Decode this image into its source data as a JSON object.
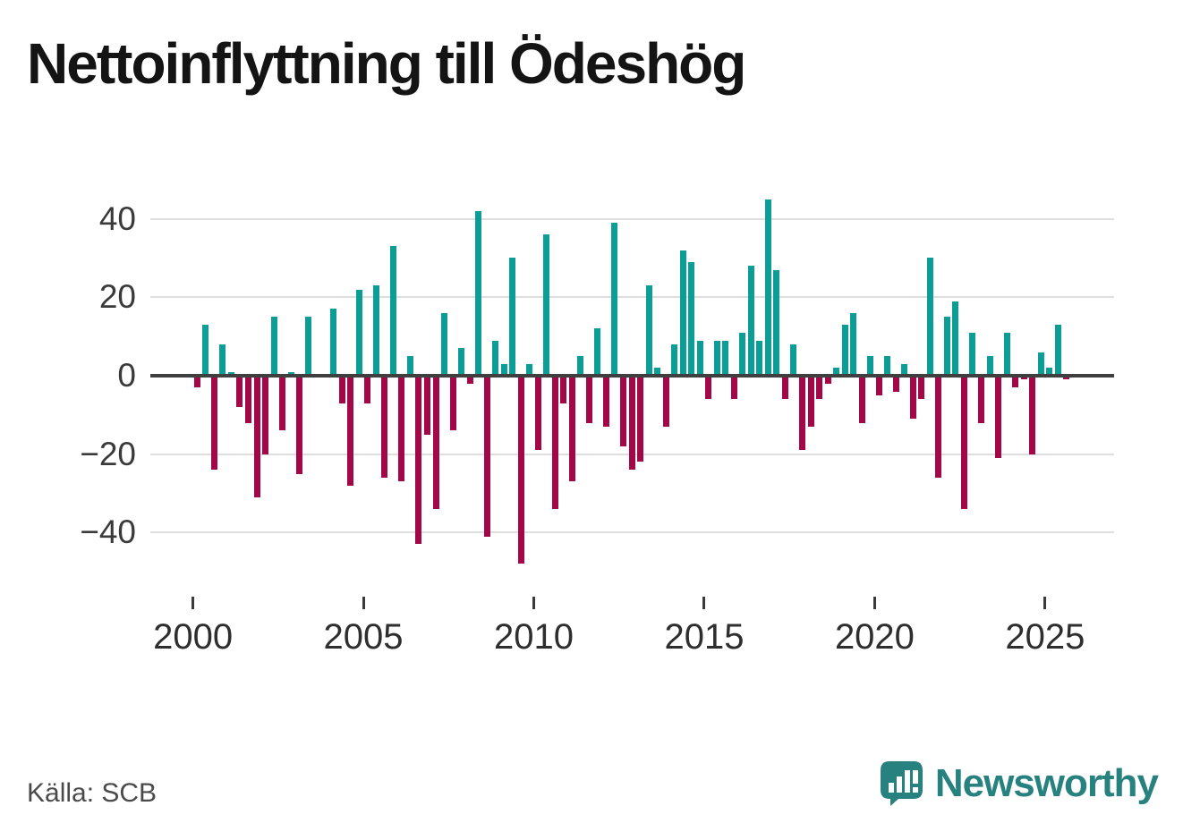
{
  "title": "Nettoinflyttning till Ödeshög",
  "source_note": "Källa: SCB",
  "brand": {
    "name": "Newsworthy",
    "icon": "newsworthy-speech-bubble-bar-chart-icon",
    "color": "#27817e"
  },
  "colors": {
    "positive_bar": "#0a9e96",
    "negative_bar": "#a30748",
    "zero_axis": "#3f3f3f",
    "gridline": "#dedede",
    "title_text": "#141414",
    "tick_text": "#2e2e2e",
    "source_text": "#4a4a4a"
  },
  "chart_data": {
    "type": "bar",
    "title": "Nettoinflyttning till Ödeshög",
    "frequency": "quarterly",
    "x_start": "2000Q1",
    "x_end": "2025Q3",
    "x_tick_years": [
      2000,
      2005,
      2010,
      2015,
      2020,
      2025
    ],
    "x_tick_labels": [
      "2000",
      "2005",
      "2010",
      "2015",
      "2020",
      "2025"
    ],
    "y_ticks": [
      40,
      20,
      0,
      -20,
      -40
    ],
    "y_tick_labels": [
      "40",
      "20",
      "0",
      "−20",
      "−40"
    ],
    "ylim": [
      -50,
      46
    ],
    "grid": true,
    "legend": false,
    "values": [
      -3,
      13,
      -24,
      8,
      1,
      -8,
      -12,
      -31,
      -20,
      15,
      -14,
      1,
      -25,
      15,
      0,
      0,
      17,
      -7,
      -28,
      22,
      -7,
      23,
      -26,
      33,
      -27,
      5,
      -43,
      -15,
      -34,
      16,
      -14,
      7,
      -2,
      42,
      -41,
      9,
      3,
      30,
      -48,
      3,
      -19,
      36,
      -34,
      -7,
      -27,
      5,
      -12,
      12,
      -13,
      39,
      -18,
      -24,
      -22,
      23,
      2,
      -13,
      8,
      32,
      29,
      9,
      -6,
      9,
      9,
      -6,
      11,
      28,
      9,
      45,
      27,
      -6,
      8,
      -19,
      -13,
      -6,
      -2,
      2,
      13,
      16,
      -12,
      5,
      -5,
      5,
      -4,
      3,
      -11,
      -6,
      30,
      -26,
      15,
      19,
      -34,
      11,
      -12,
      5,
      -21,
      11,
      -3,
      -1,
      -20,
      6,
      2,
      13,
      -1
    ]
  }
}
